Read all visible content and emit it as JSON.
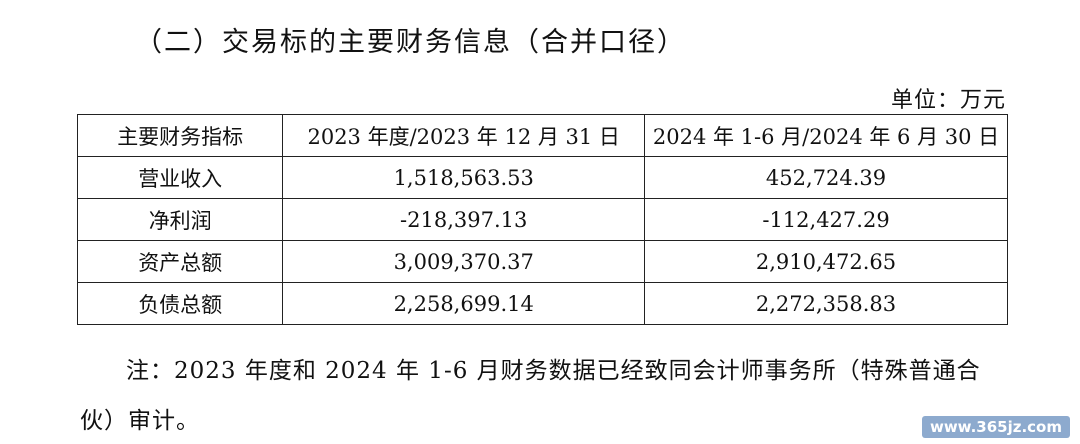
{
  "section_title": "（二）交易标的主要财务信息（合并口径）",
  "unit_label": "单位：万元",
  "table": {
    "headers": [
      "主要财务指标",
      "2023 年度/2023 年 12 月 31 日",
      "2024 年 1-6 月/2024 年 6 月 30 日"
    ],
    "rows": [
      [
        "营业收入",
        "1,518,563.53",
        "452,724.39"
      ],
      [
        "净利润",
        "-218,397.13",
        "-112,427.29"
      ],
      [
        "资产总额",
        "3,009,370.37",
        "2,910,472.65"
      ],
      [
        "负债总额",
        "2,258,699.14",
        "2,272,358.83"
      ]
    ]
  },
  "note": "注：2023 年度和 2024 年 1-6 月财务数据已经致同会计师事务所（特殊普通合伙）审计。",
  "watermark": "www.365jz.com"
}
